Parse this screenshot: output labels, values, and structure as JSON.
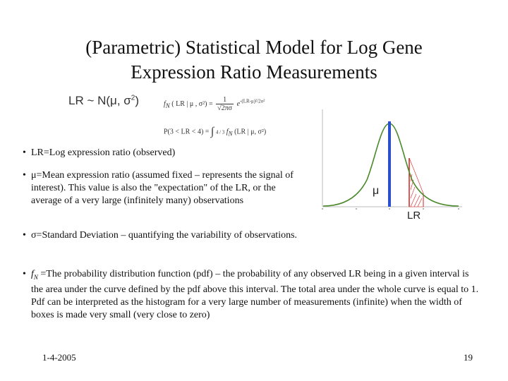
{
  "slide": {
    "title_line1": "(Parametric) Statistical Model for Log Gene",
    "title_line2": "Expression Ratio Measurements",
    "formulas": {
      "lr_dist_lhs": "LR ~ N(μ, σ",
      "lr_dist_sup": "2",
      "lr_dist_rhs": ")",
      "pdf_lhs": "f",
      "pdf_sub": "N",
      "pdf_args": "( LR | μ , σ²) =",
      "pdf_num": "1",
      "pdf_den": "√2πσ",
      "pdf_e": "e",
      "pdf_exp": "-(LR-μ)²/2σ²",
      "prob_lhs": "P(3 < LR < 4) =",
      "prob_int": "∫",
      "prob_bounds": "4 / 3",
      "prob_f": "f",
      "prob_sub": "N",
      "prob_args": "(LR | μ, σ²)"
    },
    "bullets": [
      {
        "dot": "•",
        "text": "LR=Log expression ratio (observed)"
      },
      {
        "dot": "•",
        "text": "μ=Mean expression ratio (assumed fixed – represents the signal of interest). This value is also the \"expectation\" of the LR, or the average of a very large (infinitely many) observations"
      },
      {
        "dot": "•",
        "text": "σ=Standard Deviation – quantifying the variability of observations."
      },
      {
        "dot": "•",
        "f": "f",
        "sub": "N",
        "text": " =The probability distribution function (pdf) – the probability of any observed LR being in a given interval is the area under the curve defined by the pdf above this interval. The total area under the whole curve is equal to 1. Pdf can be interpreted as the histogram for a very large number of measurements (infinite) when the width of boxes is made very small (very close to zero)"
      }
    ],
    "chart_labels": {
      "mu": "μ",
      "lr": "LR"
    },
    "footer": {
      "date": "1-4-2005",
      "page": "19"
    },
    "colors": {
      "mean_line": "#2b4fd0",
      "shade": "#d42020",
      "curve": "#4a8a2a"
    }
  }
}
